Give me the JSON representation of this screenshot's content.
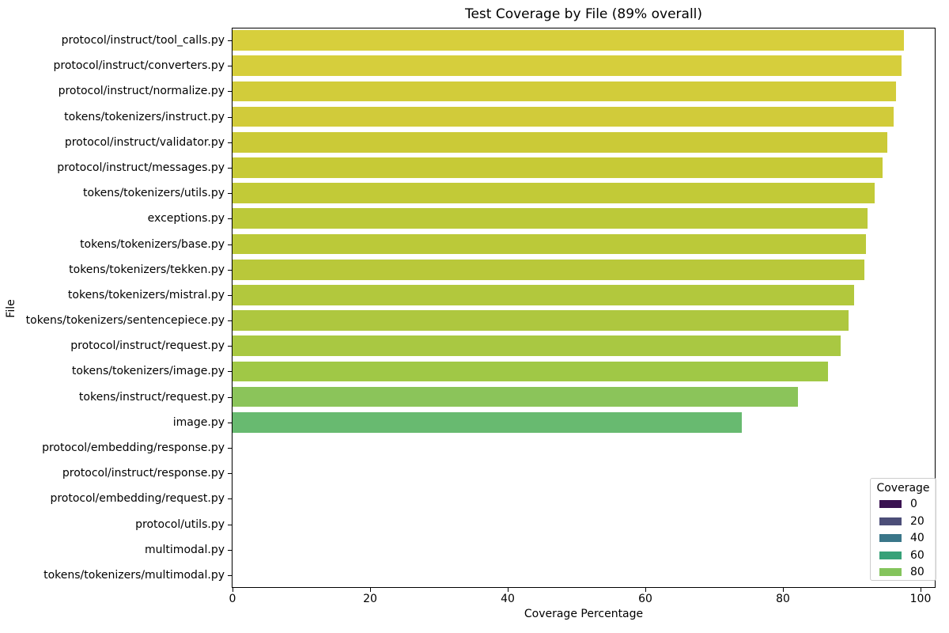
{
  "chart_data": {
    "type": "bar",
    "orientation": "horizontal",
    "title": "Test Coverage by File (89% overall)",
    "xlabel": "Coverage Percentage",
    "ylabel": "File",
    "xticks": [
      0,
      20,
      40,
      60,
      80,
      100
    ],
    "xlim": [
      0,
      102.2
    ],
    "grid": false,
    "categories": [
      "protocol/instruct/tool_calls.py",
      "protocol/instruct/converters.py",
      "protocol/instruct/normalize.py",
      "tokens/tokenizers/instruct.py",
      "protocol/instruct/validator.py",
      "protocol/instruct/messages.py",
      "tokens/tokenizers/utils.py",
      "exceptions.py",
      "tokens/tokenizers/base.py",
      "tokens/tokenizers/tekken.py",
      "tokens/tokenizers/mistral.py",
      "tokens/tokenizers/sentencepiece.py",
      "protocol/instruct/request.py",
      "tokens/tokenizers/image.py",
      "tokens/instruct/request.py",
      "image.py",
      "protocol/embedding/response.py",
      "protocol/instruct/response.py",
      "protocol/embedding/request.py",
      "protocol/utils.py",
      "multimodal.py",
      "tokens/tokenizers/multimodal.py"
    ],
    "values": [
      97.6,
      97.2,
      96.4,
      96.1,
      95.2,
      94.5,
      93.3,
      92.3,
      92.1,
      91.8,
      90.3,
      89.5,
      88.4,
      86.5,
      82.2,
      74.0,
      0,
      0,
      0,
      0,
      0,
      0
    ],
    "bar_colors": [
      "#d7cf3c",
      "#d6ce3c",
      "#d2cc3a",
      "#d1cb3a",
      "#cbca37",
      "#c7ca36",
      "#c2ca37",
      "#bcc939",
      "#bbc939",
      "#b9c83a",
      "#b2c83d",
      "#aec73f",
      "#a9c842",
      "#a0c846",
      "#8bc45a",
      "#68ba70",
      "#3a1251",
      "#3a1251",
      "#3a1251",
      "#3a1251",
      "#3a1251",
      "#3a1251"
    ],
    "legend": {
      "title": "Coverage",
      "position": "lower right",
      "entries": [
        {
          "label": "0",
          "color": "#3a1251"
        },
        {
          "label": "20",
          "color": "#4c4e78"
        },
        {
          "label": "40",
          "color": "#3a7689"
        },
        {
          "label": "60",
          "color": "#37a178"
        },
        {
          "label": "80",
          "color": "#84c45c"
        }
      ]
    }
  }
}
